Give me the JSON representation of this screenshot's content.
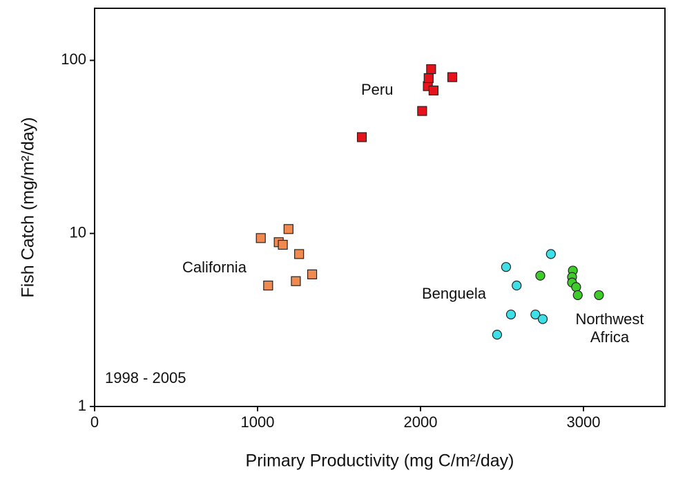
{
  "chart_data": {
    "type": "scatter",
    "xlabel": "Primary Productivity (mg C/m²/day)",
    "ylabel": "Fish Catch (mg/m²/day)",
    "annotation": "1998 - 2005",
    "xlim": [
      0,
      3500
    ],
    "xticks": [
      0,
      1000,
      2000,
      3000
    ],
    "ylim": [
      1,
      200
    ],
    "yticks": [
      1,
      10,
      100
    ],
    "yscale": "log",
    "series": [
      {
        "name": "Peru",
        "color": "#e8121b",
        "marker": "square",
        "x": [
          1640,
          2010,
          2045,
          2050,
          2065,
          2080,
          2195
        ],
        "values": [
          36,
          51,
          71,
          79,
          89,
          67,
          80
        ]
      },
      {
        "name": "California",
        "color": "#f08a50",
        "marker": "square",
        "x": [
          1020,
          1130,
          1155,
          1190,
          1255,
          1335,
          1235,
          1065
        ],
        "values": [
          9.4,
          8.9,
          8.6,
          10.6,
          7.6,
          5.8,
          5.3,
          5.0
        ]
      },
      {
        "name": "Benguela",
        "color": "#3ee0e8",
        "marker": "circle",
        "x": [
          2525,
          2590,
          2800,
          2555,
          2705,
          2750,
          2470
        ],
        "values": [
          6.4,
          5.0,
          7.6,
          3.4,
          3.4,
          3.2,
          2.6
        ]
      },
      {
        "name": "Northwest Africa",
        "color": "#3dcc28",
        "marker": "circle",
        "x": [
          2735,
          2935,
          2930,
          2930,
          2955,
          2965,
          3095
        ],
        "values": [
          5.7,
          6.1,
          5.6,
          5.2,
          4.9,
          4.4,
          4.4
        ]
      }
    ]
  }
}
